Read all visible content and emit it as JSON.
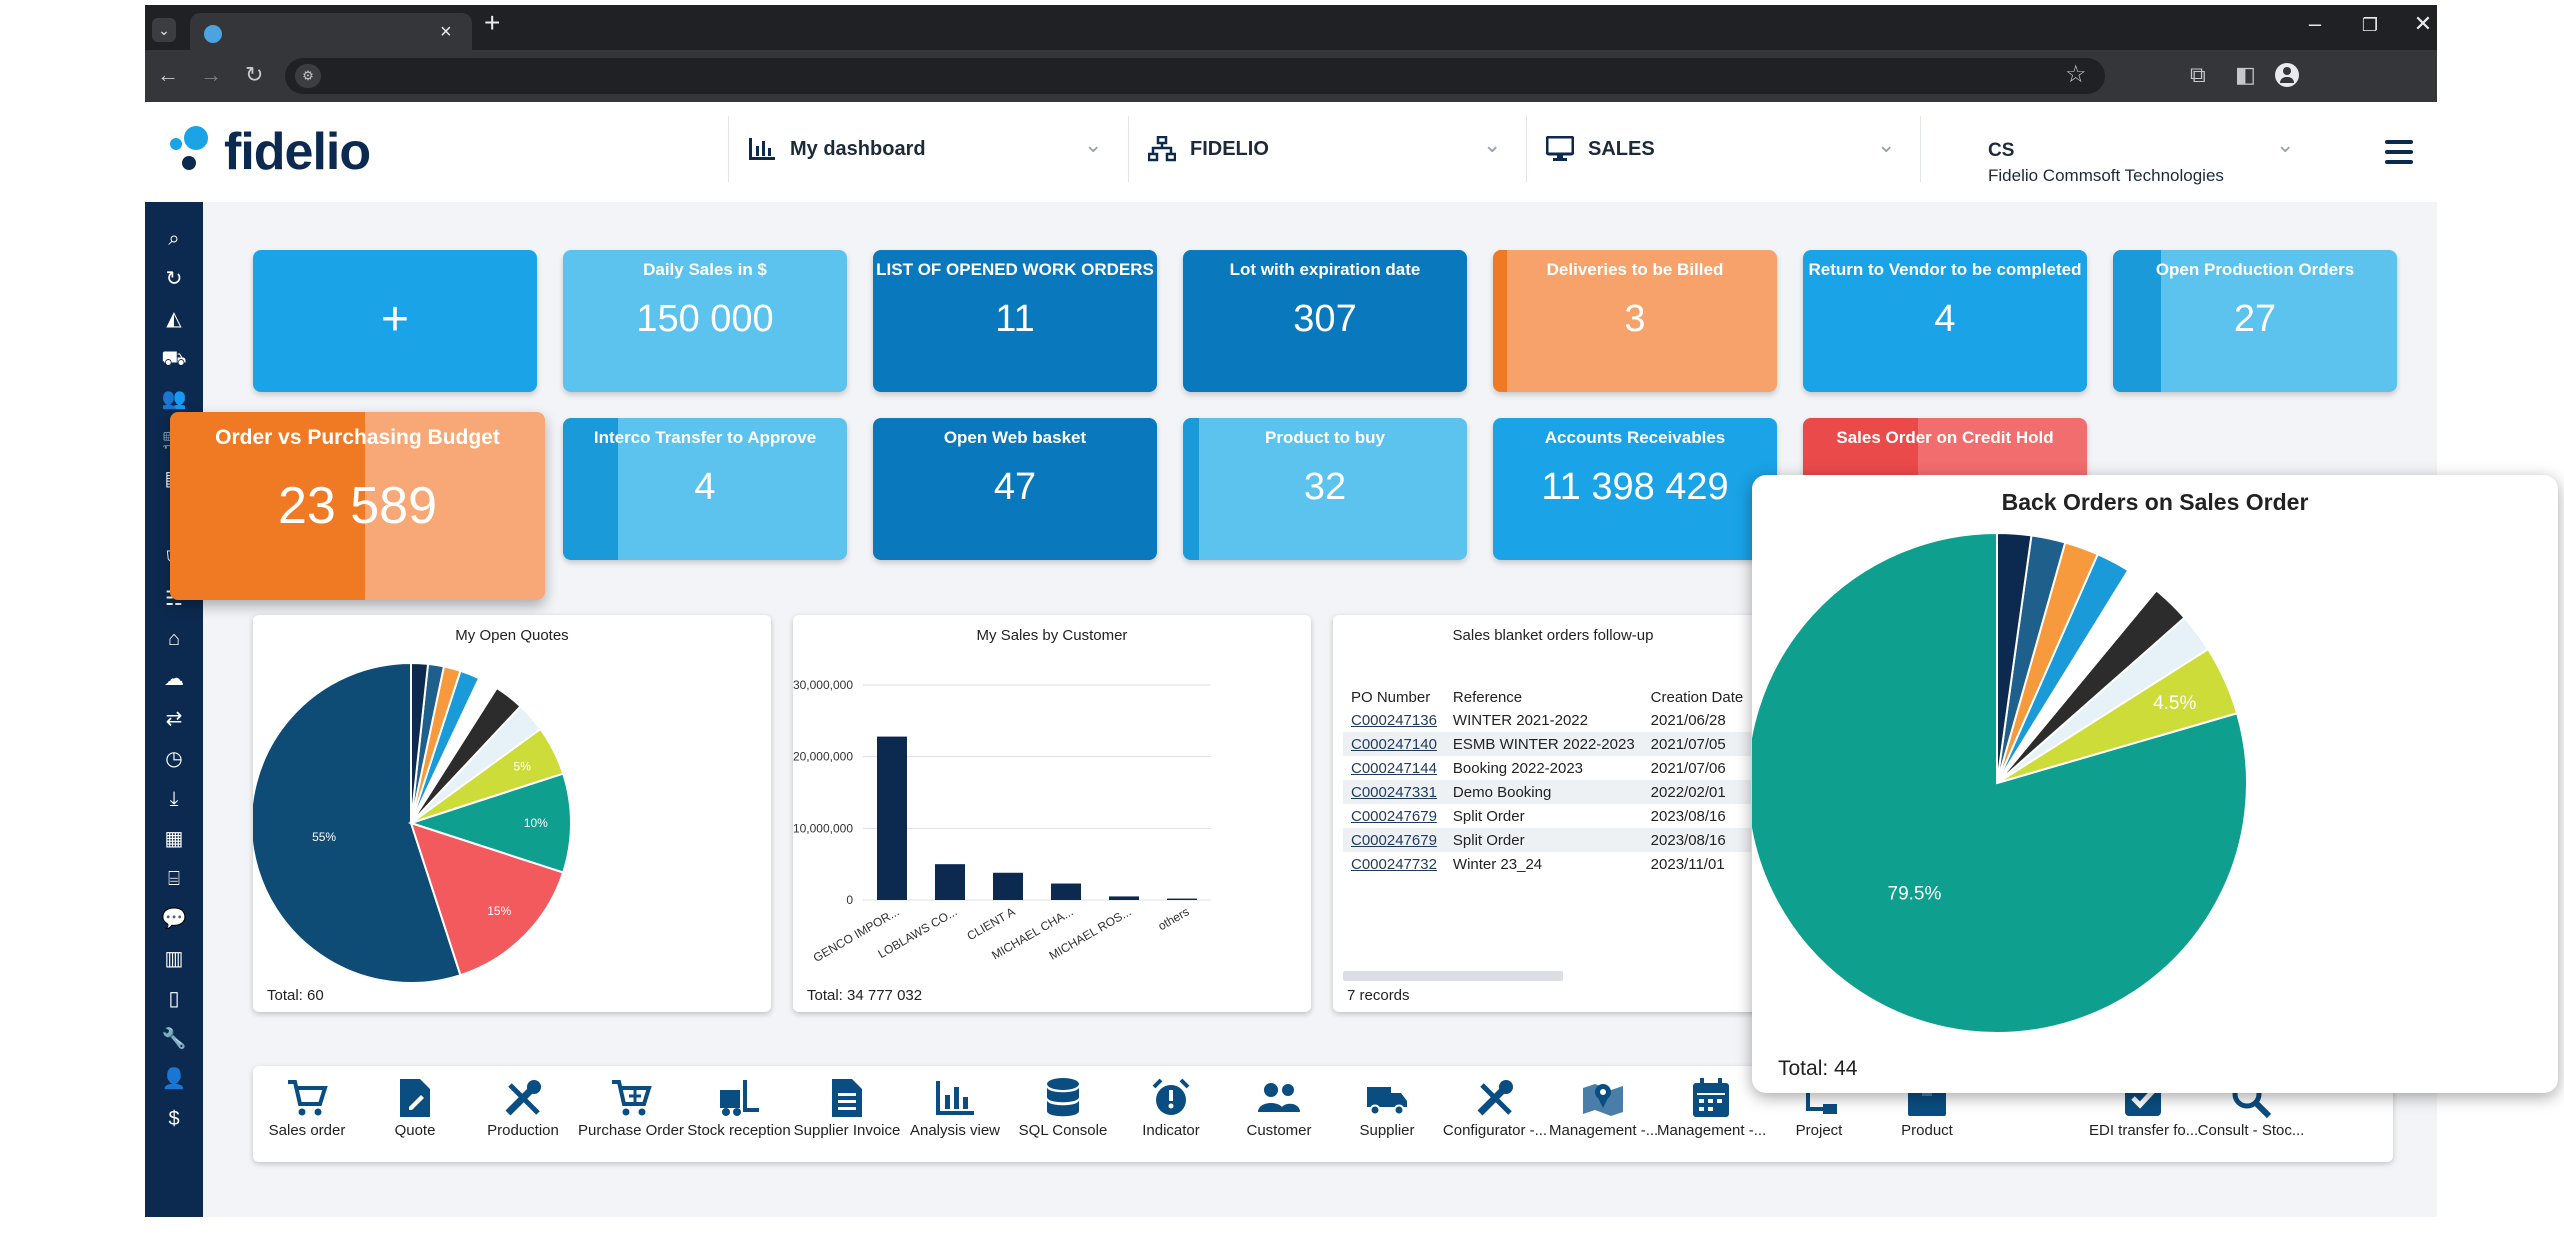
{
  "header": {
    "logo": "fidelio",
    "selectors": [
      {
        "label": "My dashboard",
        "icon": "bar-chart-icon"
      },
      {
        "label": "FIDELIO",
        "icon": "sitemap-icon"
      },
      {
        "label": "SALES",
        "icon": "monitor-icon"
      }
    ],
    "company_code": "CS",
    "company_name": "Fidelio Commsoft Technologies"
  },
  "kpi_tiles": [
    {
      "title": "",
      "value": "+",
      "color": "#1aa3e6"
    },
    {
      "title": "Daily Sales in $",
      "value": "150 000",
      "color": "#5bc3ee"
    },
    {
      "title": "LIST OF OPENED WORK ORDERS",
      "value": "11",
      "color": "#0a78bd"
    },
    {
      "title": "Lot with expiration date",
      "value": "307",
      "color": "#0a78bd"
    },
    {
      "title": "Deliveries to be Billed",
      "value": "3",
      "color": "#f7a26a",
      "stripe": "#f07a24"
    },
    {
      "title": "Return to Vendor to be completed",
      "value": "4",
      "color": "#1aa3e6"
    },
    {
      "title": "Open Production Orders",
      "value": "27",
      "color": "#5bc3ee",
      "stripe": "#1a9ad8"
    },
    {
      "title": "Interco Transfer to Approve",
      "value": "4",
      "color": "#5bc3ee",
      "stripe": "#1a9ad8"
    },
    {
      "title": "Open Web basket",
      "value": "47",
      "color": "#0a78bd"
    },
    {
      "title": "Product to buy",
      "value": "32",
      "color": "#5bc3ee",
      "stripe": "#1a9ad8"
    },
    {
      "title": "Accounts Receivables",
      "value": "11 398 429",
      "color": "#1aa3e6"
    },
    {
      "title": "Sales Order on Credit Hold",
      "value": "",
      "color": "#f26d6d",
      "stripe": "#ea4a4a"
    }
  ],
  "highlight_tile": {
    "title": "Order vs Purchasing Budget",
    "value": "23 589"
  },
  "open_quotes": {
    "title": "My Open Quotes",
    "total": "Total: 60",
    "chart_data": {
      "type": "pie",
      "slices": [
        {
          "value": 55,
          "color": "#0f4c75",
          "label": "55%"
        },
        {
          "value": 15,
          "color": "#f25a5e",
          "label": "15%"
        },
        {
          "value": 10,
          "color": "#0f9f8f",
          "label": "10%"
        },
        {
          "value": 5,
          "color": "#cddc39",
          "label": "5%"
        },
        {
          "value": 3,
          "color": "#e6f2f7",
          "label": ""
        },
        {
          "value": 3,
          "color": "#2c2c2c",
          "label": ""
        },
        {
          "value": 2,
          "color": "#ffffff",
          "label": ""
        },
        {
          "value": 2,
          "color": "#1a9ad8",
          "label": ""
        },
        {
          "value": 1.7,
          "color": "#f79a3e",
          "label": ""
        },
        {
          "value": 1.6,
          "color": "#1f5f8b",
          "label": ""
        },
        {
          "value": 1.7,
          "color": "#0c2a4f",
          "label": ""
        }
      ]
    }
  },
  "sales_by_customer": {
    "title": "My Sales by Customer",
    "total": "Total: 34 777 032",
    "chart_data": {
      "type": "bar",
      "categories": [
        "GENCO IMPOR...",
        "LOBLAWS CO...",
        "CLIENT A",
        "MICHAEL CHA...",
        "MICHAEL ROS...",
        "others"
      ],
      "values": [
        22800000,
        5000000,
        3800000,
        2300000,
        500000,
        200000
      ],
      "ylim": [
        0,
        30000000
      ],
      "yticks": [
        "0",
        "10,000,000",
        "20,000,000",
        "30,000,000"
      ],
      "ytick_values": [
        0,
        10000000,
        20000000,
        30000000
      ]
    }
  },
  "blanket_orders": {
    "title": "Sales blanket orders follow-up",
    "columns": [
      "PO Number",
      "Reference",
      "Creation Date"
    ],
    "rows": [
      [
        "C000247136",
        "WINTER 2021-2022",
        "2021/06/28"
      ],
      [
        "C000247140",
        "ESMB WINTER 2022-2023",
        "2021/07/05"
      ],
      [
        "C000247144",
        "Booking 2022-2023",
        "2021/07/06"
      ],
      [
        "C000247331",
        "Demo Booking",
        "2022/02/01"
      ],
      [
        "C000247679",
        "Split Order",
        "2023/08/16"
      ],
      [
        "C000247679",
        "Split Order",
        "2023/08/16"
      ],
      [
        "C000247732",
        "Winter 23_24",
        "2023/11/01"
      ]
    ],
    "footer": "7 records"
  },
  "back_orders": {
    "title": "Back Orders on Sales Order",
    "total": "Total: 44",
    "chart_data": {
      "type": "pie",
      "slices": [
        {
          "value": 79.5,
          "color": "#0f9f8f",
          "label": "79.5%"
        },
        {
          "value": 4.5,
          "color": "#cddc39",
          "label": "4.5%"
        },
        {
          "value": 2.5,
          "color": "#e6f2f7",
          "label": ""
        },
        {
          "value": 2.5,
          "color": "#2c2c2c",
          "label": ""
        },
        {
          "value": 2.2,
          "color": "#ffffff",
          "label": ""
        },
        {
          "value": 2.2,
          "color": "#1a9ad8",
          "label": ""
        },
        {
          "value": 2.2,
          "color": "#f79a3e",
          "label": ""
        },
        {
          "value": 2.2,
          "color": "#1f5f8b",
          "label": ""
        },
        {
          "value": 2.2,
          "color": "#0c2a4f",
          "label": ""
        }
      ]
    }
  },
  "shortcuts": [
    {
      "label": "Sales order",
      "icon": "cart-icon"
    },
    {
      "label": "Quote",
      "icon": "quote-file-icon"
    },
    {
      "label": "Production",
      "icon": "tools-icon"
    },
    {
      "label": "Purchase Order",
      "icon": "cart-plus-icon"
    },
    {
      "label": "Stock reception",
      "icon": "forklift-icon"
    },
    {
      "label": "Supplier Invoice",
      "icon": "invoice-icon"
    },
    {
      "label": "Analysis view",
      "icon": "bar-chart-icon"
    },
    {
      "label": "SQL Console",
      "icon": "database-icon"
    },
    {
      "label": "Indicator",
      "icon": "alarm-icon"
    },
    {
      "label": "Customer",
      "icon": "users-icon"
    },
    {
      "label": "Supplier",
      "icon": "truck-icon"
    },
    {
      "label": "Configurator -...",
      "icon": "tools-icon"
    },
    {
      "label": "Management -...",
      "icon": "map-icon"
    },
    {
      "label": "Management -...",
      "icon": "calendar-icon"
    },
    {
      "label": "Project",
      "icon": "project-icon"
    },
    {
      "label": "Product",
      "icon": "box-icon"
    },
    {
      "label": "EDI transfer fo...",
      "icon": "checkbox-icon"
    },
    {
      "label": "Consult - Stoc...",
      "icon": "search-icon"
    }
  ],
  "colors": {
    "navy": "#0c2a4f",
    "accent": "#1aa3e6",
    "orange": "#f07a24"
  }
}
